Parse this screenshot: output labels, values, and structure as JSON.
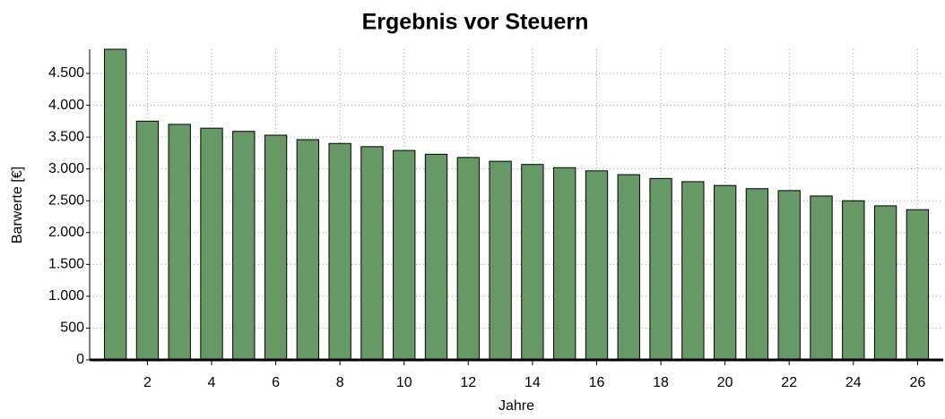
{
  "chart_data": {
    "type": "bar",
    "title": "Ergebnis vor Steuern",
    "x_label": "Jahre",
    "y_label": "Barwerte [€]",
    "x": [
      1,
      2,
      3,
      4,
      5,
      6,
      7,
      8,
      9,
      10,
      11,
      12,
      13,
      14,
      15,
      16,
      17,
      18,
      19,
      20,
      21,
      22,
      23,
      24,
      25,
      26
    ],
    "values": [
      4880,
      3750,
      3700,
      3640,
      3590,
      3530,
      3460,
      3400,
      3350,
      3290,
      3230,
      3180,
      3120,
      3070,
      3020,
      2970,
      2910,
      2850,
      2800,
      2740,
      2690,
      2660,
      2575,
      2500,
      2420,
      2360
    ],
    "color": "#669966",
    "xlim": [
      0.2,
      26.8
    ],
    "xticks": [
      2,
      4,
      6,
      8,
      10,
      12,
      14,
      16,
      18,
      20,
      22,
      24,
      26
    ],
    "ylim": [
      0,
      4880
    ],
    "yticks": [
      0,
      500,
      {
        "value": 1000,
        "label": "1.000"
      },
      {
        "value": 1500,
        "label": "1.500"
      },
      {
        "value": 2000,
        "label": "2.000"
      },
      {
        "value": 2500,
        "label": "2.500"
      },
      {
        "value": 3000,
        "label": "3.000"
      },
      {
        "value": 3500,
        "label": "3.500"
      },
      {
        "value": 4000,
        "label": "4.000"
      },
      {
        "value": 4500,
        "label": "4.500"
      }
    ],
    "grid": true
  }
}
